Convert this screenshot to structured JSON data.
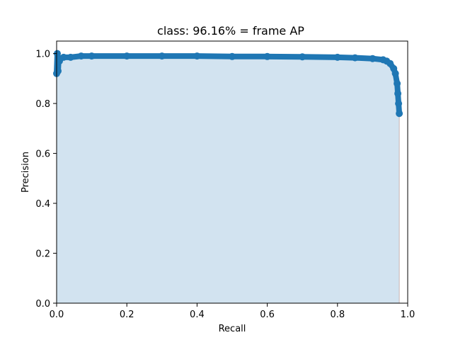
{
  "chart_data": {
    "type": "line",
    "title": "class: 96.16% = frame AP",
    "xlabel": "Recall",
    "ylabel": "Precision",
    "xlim": [
      0.0,
      1.0
    ],
    "ylim": [
      0.0,
      1.05
    ],
    "xticks": [
      "0.0",
      "0.2",
      "0.4",
      "0.6",
      "0.8",
      "1.0"
    ],
    "yticks": [
      "0.0",
      "0.2",
      "0.4",
      "0.6",
      "0.8",
      "1.0"
    ],
    "grid": false,
    "legend": "none",
    "series": [
      {
        "x": [
          0.0,
          0.002,
          0.004,
          0.006,
          0.008,
          0.01,
          0.02,
          0.04,
          0.07,
          0.1,
          0.2,
          0.3,
          0.4,
          0.5,
          0.6,
          0.7,
          0.8,
          0.85,
          0.9,
          0.93,
          0.94,
          0.95,
          0.96,
          0.965,
          0.97,
          0.972,
          0.974,
          0.976
        ],
        "y": [
          0.92,
          1.0,
          0.93,
          0.98,
          0.97,
          0.98,
          0.985,
          0.985,
          0.99,
          0.99,
          0.99,
          0.99,
          0.99,
          0.988,
          0.988,
          0.987,
          0.985,
          0.983,
          0.98,
          0.975,
          0.97,
          0.96,
          0.94,
          0.92,
          0.88,
          0.84,
          0.8,
          0.76
        ]
      }
    ],
    "colors": {
      "line": "#1f77b4",
      "fill": "#d2e3f0",
      "edge": "#c8b4b4"
    }
  }
}
